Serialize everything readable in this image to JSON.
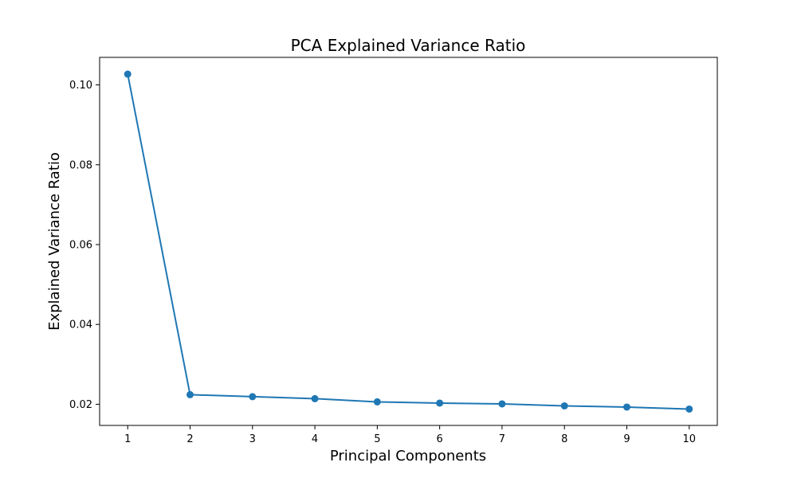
{
  "chart_data": {
    "type": "line",
    "title": "PCA Explained Variance Ratio",
    "xlabel": "Principal Components",
    "ylabel": "Explained Variance Ratio",
    "x": [
      1,
      2,
      3,
      4,
      5,
      6,
      7,
      8,
      9,
      10
    ],
    "y": [
      0.1027,
      0.0224,
      0.0219,
      0.0214,
      0.0206,
      0.0203,
      0.0201,
      0.0196,
      0.0193,
      0.0188
    ],
    "xlim": [
      0.55,
      10.45
    ],
    "ylim": [
      0.0147,
      0.1069
    ],
    "xticks": [
      "1",
      "2",
      "3",
      "4",
      "5",
      "6",
      "7",
      "8",
      "9",
      "10"
    ],
    "yticks": [
      "0.02",
      "0.04",
      "0.06",
      "0.08",
      "0.10"
    ],
    "ytick_values": [
      0.02,
      0.04,
      0.06,
      0.08,
      0.1
    ],
    "marker": "circle",
    "grid": false,
    "legend": "none",
    "line_color": "#1f77b4"
  }
}
